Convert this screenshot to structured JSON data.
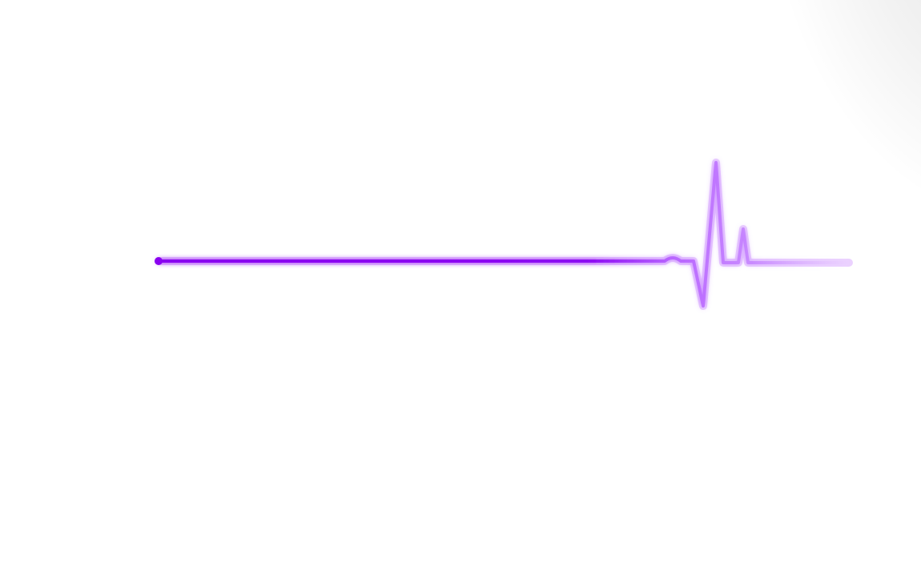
{
  "colors": {
    "background": "#ffffff",
    "line": "#8a00f0",
    "line_light": "#c07cff",
    "glow": "#c77dff"
  },
  "graphic": {
    "type": "heartbeat-line",
    "icon": "ecg-pulse-icon"
  }
}
